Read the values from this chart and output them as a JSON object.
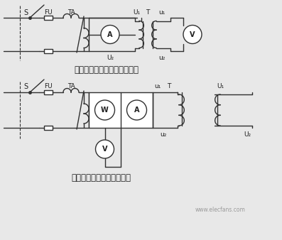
{
  "bg_color": "#e8e8e8",
  "line_color": "#303030",
  "text_color": "#202020",
  "caption1": "单相变压器测变比试验线路图",
  "caption2": "单相变压器空载试验线路图",
  "watermark": "www.elecfans.com",
  "fig_width": 3.97,
  "fig_height": 3.38,
  "dpi": 100
}
